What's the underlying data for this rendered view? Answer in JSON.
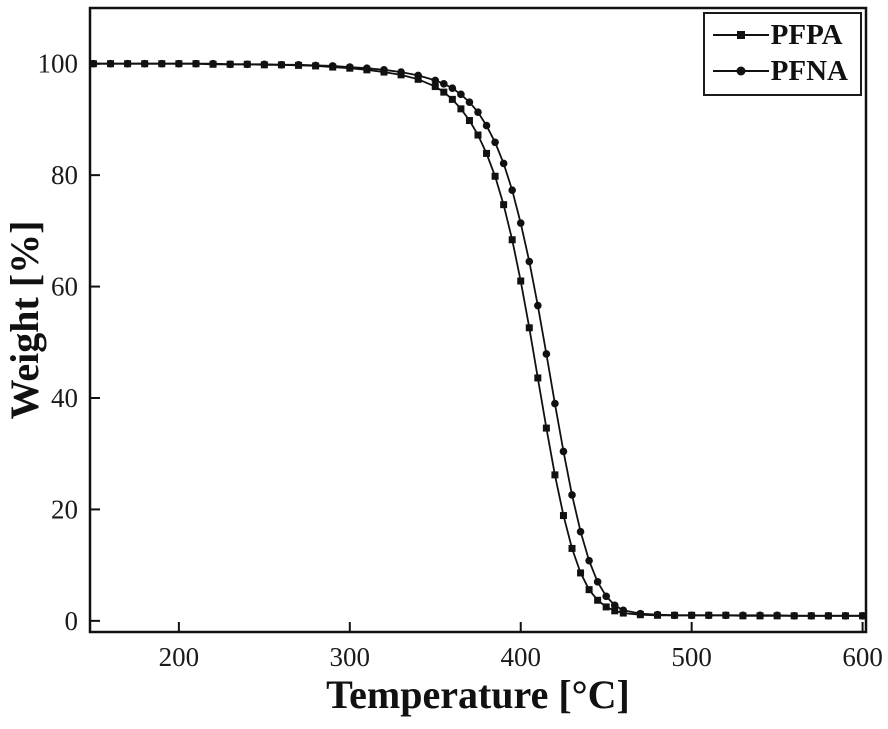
{
  "chart_data": {
    "type": "line",
    "title": "",
    "xlabel": "Temperature [°C]",
    "ylabel": "Weight [%]",
    "xlim": [
      148,
      602
    ],
    "ylim": [
      -2,
      110
    ],
    "xticks": [
      200,
      300,
      400,
      500,
      600
    ],
    "yticks": [
      0,
      20,
      40,
      60,
      80,
      100
    ],
    "grid": false,
    "legend_position": "top-right",
    "colors": {
      "frame": "#111111",
      "series": "#111111",
      "background": "#ffffff"
    },
    "x": [
      150,
      160,
      170,
      180,
      190,
      200,
      210,
      220,
      230,
      240,
      250,
      260,
      270,
      280,
      290,
      300,
      310,
      320,
      330,
      340,
      350,
      355,
      360,
      365,
      370,
      375,
      380,
      385,
      390,
      395,
      400,
      405,
      410,
      415,
      420,
      425,
      430,
      435,
      440,
      445,
      450,
      455,
      460,
      470,
      480,
      490,
      500,
      510,
      520,
      530,
      540,
      550,
      560,
      570,
      580,
      590,
      600
    ],
    "series": [
      {
        "name": "PFPA",
        "marker": "square",
        "color": "#111111",
        "values": [
          100,
          100,
          100,
          100,
          100,
          100,
          100,
          99.9,
          99.9,
          99.9,
          99.8,
          99.8,
          99.7,
          99.6,
          99.4,
          99.2,
          98.9,
          98.5,
          98.0,
          97.2,
          95.9,
          94.9,
          93.6,
          91.9,
          89.8,
          87.2,
          83.9,
          79.8,
          74.7,
          68.4,
          61.0,
          52.6,
          43.6,
          34.6,
          26.2,
          18.9,
          13.0,
          8.6,
          5.6,
          3.7,
          2.5,
          1.8,
          1.4,
          1.1,
          1.0,
          1.0,
          1.0,
          1.0,
          1.0,
          0.9,
          0.9,
          0.9,
          0.9,
          0.9,
          0.9,
          0.9,
          0.9
        ]
      },
      {
        "name": "PFNA",
        "marker": "circle",
        "color": "#111111",
        "values": [
          100,
          100,
          100,
          100,
          100,
          100,
          100,
          100,
          99.9,
          99.9,
          99.9,
          99.8,
          99.8,
          99.7,
          99.6,
          99.4,
          99.2,
          98.9,
          98.5,
          97.9,
          97.0,
          96.4,
          95.6,
          94.5,
          93.1,
          91.3,
          88.9,
          85.9,
          82.1,
          77.3,
          71.4,
          64.5,
          56.6,
          47.9,
          39.0,
          30.4,
          22.6,
          16.0,
          10.8,
          7.0,
          4.4,
          2.8,
          1.9,
          1.3,
          1.1,
          1.0,
          1.0,
          1.0,
          1.0,
          1.0,
          1.0,
          1.0,
          0.9,
          0.9,
          0.9,
          0.9,
          0.9
        ]
      }
    ]
  }
}
